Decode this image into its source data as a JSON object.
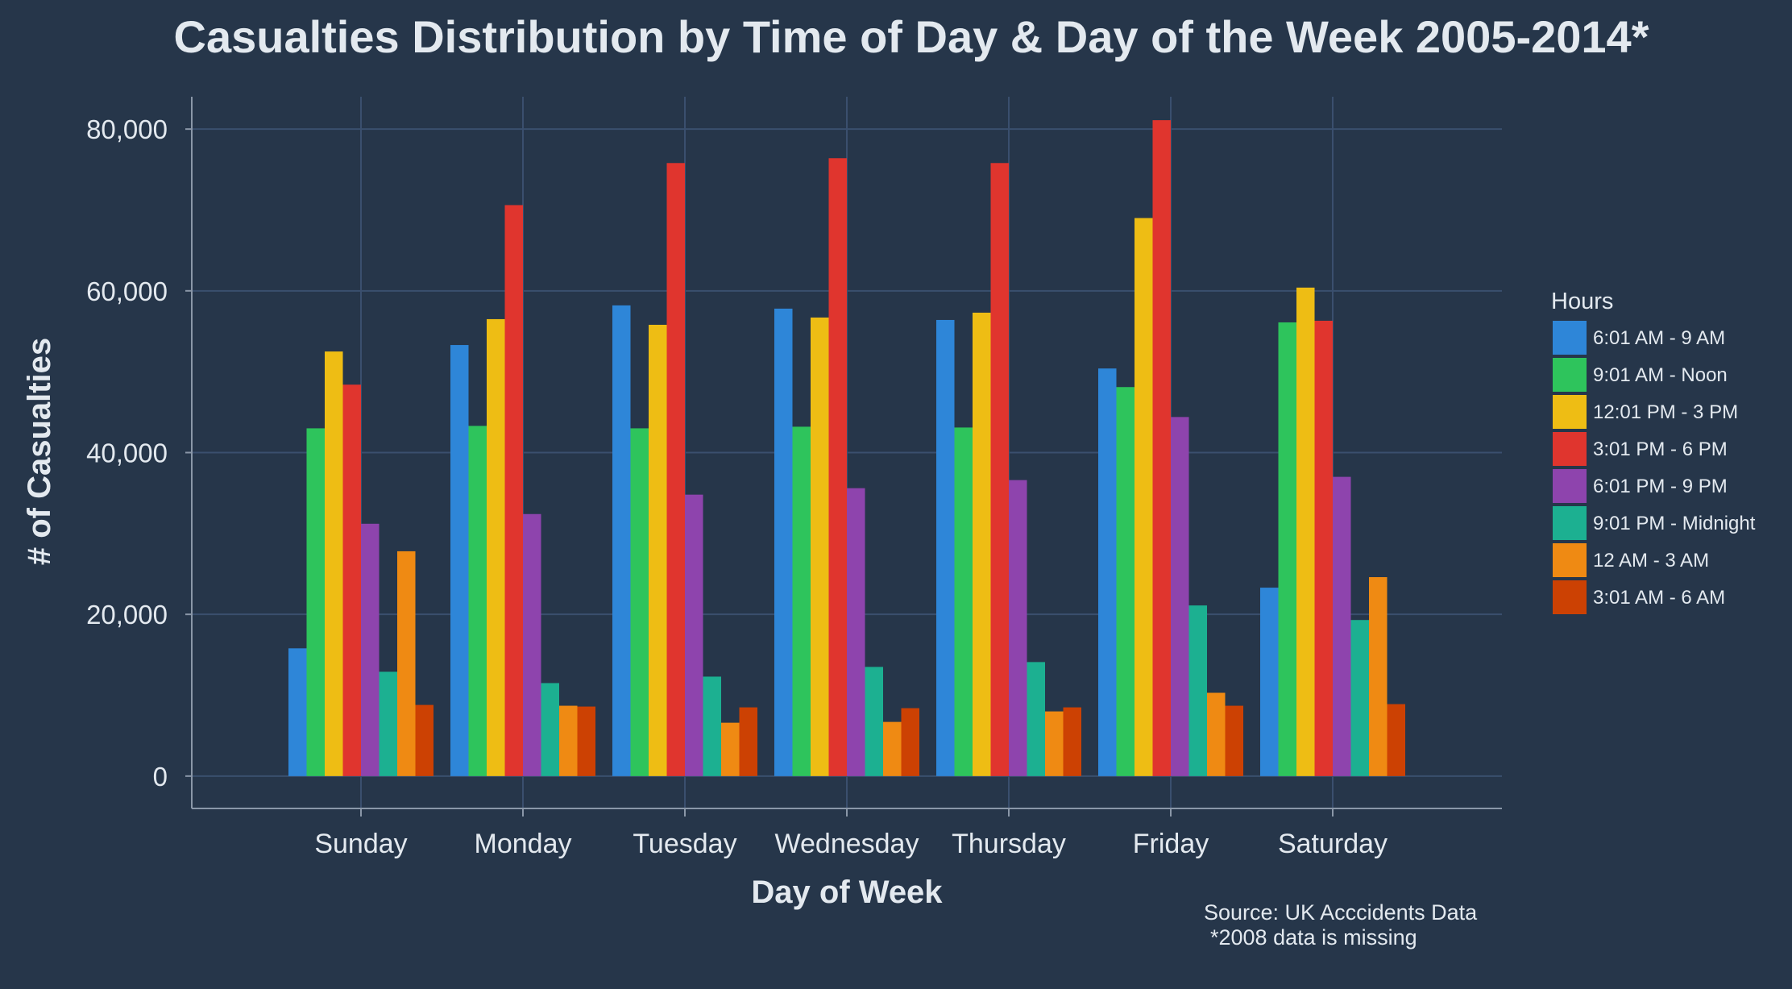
{
  "colors": {
    "background": "#26364a",
    "grid": "#3a4f6e",
    "axis": "#8a97a8",
    "text": "#e3e9ef"
  },
  "chart_data": {
    "type": "bar",
    "title": "Casualties Distribution by Time of Day & Day of the Week 2005-2014*",
    "xlabel": "Day of Week",
    "ylabel": "# of Casualties",
    "ylim": [
      -4000,
      84000
    ],
    "yticks": [
      0,
      20000,
      40000,
      60000,
      80000
    ],
    "ytick_labels": [
      "0",
      "20,000",
      "40,000",
      "60,000",
      "80,000"
    ],
    "categories": [
      "Sunday",
      "Monday",
      "Tuesday",
      "Wednesday",
      "Thursday",
      "Friday",
      "Saturday"
    ],
    "grid": true,
    "legend": {
      "title": "Hours",
      "placement": "right"
    },
    "series": [
      {
        "name": "6:01 AM - 9 AM",
        "color": "#2e86d8",
        "values": [
          15800,
          53300,
          58200,
          57800,
          56400,
          50400,
          23300
        ]
      },
      {
        "name": "9:01 AM - Noon",
        "color": "#2ec45c",
        "values": [
          43000,
          43300,
          43000,
          43200,
          43100,
          48100,
          56100
        ]
      },
      {
        "name": "12:01 PM - 3 PM",
        "color": "#eebd14",
        "values": [
          52500,
          56500,
          55800,
          56700,
          57300,
          69000,
          60400
        ]
      },
      {
        "name": "3:01 PM - 6 PM",
        "color": "#e0352e",
        "values": [
          48400,
          70600,
          75800,
          76400,
          75800,
          81100,
          56300
        ]
      },
      {
        "name": "6:01 PM - 9 PM",
        "color": "#8e44ad",
        "values": [
          31200,
          32400,
          34800,
          35600,
          36600,
          44400,
          37000
        ]
      },
      {
        "name": "9:01 PM - Midnight",
        "color": "#1cb091",
        "values": [
          12900,
          11500,
          12300,
          13500,
          14100,
          21100,
          19300
        ]
      },
      {
        "name": "12 AM - 3 AM",
        "color": "#ef8a13",
        "values": [
          27800,
          8700,
          6600,
          6700,
          8000,
          10300,
          24600
        ]
      },
      {
        "name": "3:01 AM - 6 AM",
        "color": "#cc4103",
        "values": [
          8800,
          8600,
          8500,
          8400,
          8500,
          8700,
          8900
        ]
      }
    ],
    "annotations": [
      "Source: UK Acccidents Data",
      "*2008 data is missing"
    ]
  }
}
